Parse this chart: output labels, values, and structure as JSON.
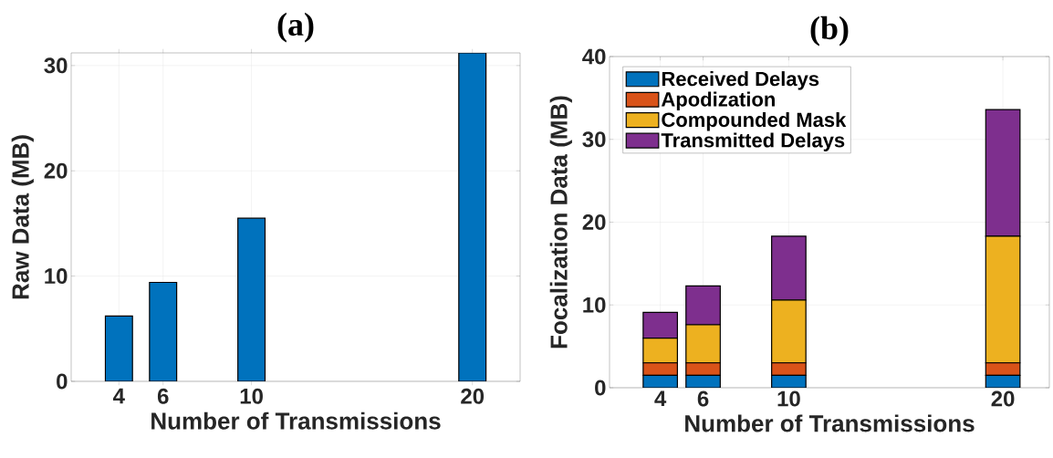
{
  "chart_data": [
    {
      "type": "bar",
      "title": "(a)",
      "xlabel": "Number of Transmissions",
      "ylabel": "Raw Data (MB)",
      "x": [
        4,
        6,
        10,
        20
      ],
      "values": [
        6.2,
        9.4,
        15.5,
        31.2
      ],
      "color": "#0072bd",
      "xlim": [
        1.84,
        22.16
      ],
      "ylim": [
        0,
        31.2
      ],
      "xticks": [
        4,
        6,
        10,
        20
      ],
      "yticks": [
        0,
        10,
        20,
        30
      ],
      "grid": true
    },
    {
      "type": "bar",
      "title": "(b)",
      "xlabel": "Number of Transmissions",
      "ylabel": "Focalization Data (MB)",
      "x": [
        4,
        6,
        10,
        20
      ],
      "stacked": true,
      "series": [
        {
          "name": "Received Delays",
          "color": "#0072bd",
          "values": [
            1.5,
            1.5,
            1.5,
            1.5
          ]
        },
        {
          "name": "Apodization",
          "color": "#d95319",
          "values": [
            1.5,
            1.5,
            1.5,
            1.5
          ]
        },
        {
          "name": "Compounded Mask",
          "color": "#edb120",
          "values": [
            3.0,
            4.6,
            7.6,
            15.3
          ]
        },
        {
          "name": "Transmitted Delays",
          "color": "#7e2f8e",
          "values": [
            3.1,
            4.7,
            7.7,
            15.3
          ]
        }
      ],
      "xlim": [
        1.63,
        22.17
      ],
      "ylim": [
        0,
        40
      ],
      "xticks": [
        4,
        6,
        10,
        20
      ],
      "yticks": [
        0,
        10,
        20,
        30,
        40
      ],
      "grid": true,
      "legend": "top left"
    }
  ]
}
